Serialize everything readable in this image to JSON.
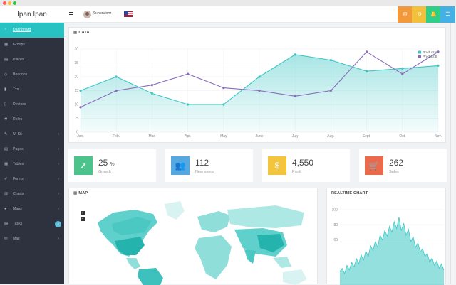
{
  "app": {
    "brand": "Ipan Ipan"
  },
  "topbar": {
    "user_label": "Supervisor",
    "buttons": [
      {
        "icon": "chat-icon",
        "glyph": "✉",
        "color": "#f29a3b"
      },
      {
        "icon": "mail-icon",
        "glyph": "✉",
        "color": "#f2c13b"
      },
      {
        "icon": "bell-icon",
        "glyph": "🔔",
        "color": "#2fcf8a"
      },
      {
        "icon": "menu-list-icon",
        "glyph": "☰",
        "color": "#45b0e4"
      }
    ]
  },
  "sidebar": {
    "items": [
      {
        "label": "Dashboard",
        "icon": "dashboard-icon",
        "glyph": "◔",
        "active": true,
        "arrow": false
      },
      {
        "label": "Groups",
        "icon": "groups-icon",
        "glyph": "▦",
        "active": false,
        "arrow": false
      },
      {
        "label": "Places",
        "icon": "places-icon",
        "glyph": "▤",
        "active": false,
        "arrow": false
      },
      {
        "label": "Beacons",
        "icon": "beacons-icon",
        "glyph": "◇",
        "active": false,
        "arrow": false
      },
      {
        "label": "Txs",
        "icon": "txs-icon",
        "glyph": "▮",
        "active": false,
        "arrow": false
      },
      {
        "label": "Devices",
        "icon": "devices-icon",
        "glyph": "▯",
        "active": false,
        "arrow": false
      },
      {
        "label": "Roles",
        "icon": "roles-icon",
        "glyph": "✱",
        "active": false,
        "arrow": false
      },
      {
        "label": "UI Kit",
        "icon": "ui-kit-icon",
        "glyph": "✎",
        "active": false,
        "arrow": true
      },
      {
        "label": "Pages",
        "icon": "pages-icon",
        "glyph": "▤",
        "active": false,
        "arrow": true
      },
      {
        "label": "Tables",
        "icon": "tables-icon",
        "glyph": "▦",
        "active": false,
        "arrow": true
      },
      {
        "label": "Forms",
        "icon": "forms-icon",
        "glyph": "✐",
        "active": false,
        "arrow": true
      },
      {
        "label": "Charts",
        "icon": "charts-icon",
        "glyph": "▥",
        "active": false,
        "arrow": true
      },
      {
        "label": "Maps",
        "icon": "maps-icon",
        "glyph": "●",
        "active": false,
        "arrow": true
      },
      {
        "label": "Tasks",
        "icon": "tasks-icon",
        "glyph": "▤",
        "active": false,
        "arrow": false,
        "badge": "4"
      },
      {
        "label": "Mail",
        "icon": "mail-icon",
        "glyph": "✉",
        "active": false,
        "arrow": true
      }
    ]
  },
  "data_panel": {
    "title": "DATA"
  },
  "map_panel": {
    "title": "MAP",
    "zoom_in": "+",
    "zoom_out": "−"
  },
  "realtime_panel": {
    "title": "REALTIME CHART"
  },
  "stats": [
    {
      "value": "25",
      "unit": "%",
      "label": "Growth",
      "icon": "rocket-icon",
      "glyph": "➚",
      "color": "#4cc38a"
    },
    {
      "value": "112",
      "unit": "",
      "label": "New users",
      "icon": "users-icon",
      "glyph": "👥",
      "color": "#55a9e0"
    },
    {
      "value": "4,550",
      "unit": "",
      "label": "Profit",
      "icon": "dollar-icon",
      "glyph": "$",
      "color": "#f2c53d"
    },
    {
      "value": "262",
      "unit": "",
      "label": "Sales",
      "icon": "cart-icon",
      "glyph": "🛒",
      "color": "#ec6a4c"
    }
  ],
  "chart_data": [
    {
      "type": "line",
      "categories": [
        "Jan.",
        "Feb.",
        "Mar.",
        "Apr.",
        "May",
        "June",
        "July",
        "Aug.",
        "Sept.",
        "Oct.",
        "Nov."
      ],
      "ylim": [
        0,
        30
      ],
      "yticks": [
        0,
        5,
        10,
        15,
        20,
        25,
        30
      ],
      "grid": true,
      "legend": "top-right",
      "series": [
        {
          "name": "Product A",
          "color": "#3cc6c4",
          "fill": true,
          "values": [
            15,
            20,
            14,
            10,
            10,
            20,
            28,
            26,
            22,
            23,
            24
          ]
        },
        {
          "name": "Product B",
          "color": "#8a6bbd",
          "fill": false,
          "values": [
            9,
            15,
            17,
            21,
            16,
            15,
            13,
            15,
            29,
            21,
            29
          ]
        }
      ]
    },
    {
      "type": "area",
      "ylim": [
        0,
        100
      ],
      "yticks": [
        60,
        80,
        100
      ],
      "color": "#3cc6c4",
      "values": [
        18,
        22,
        15,
        26,
        20,
        30,
        24,
        35,
        28,
        40,
        33,
        45,
        38,
        52,
        46,
        58,
        50,
        66,
        60,
        72,
        65,
        78,
        70,
        84,
        75,
        90,
        72,
        82,
        66,
        74,
        58,
        64,
        50,
        56,
        44,
        48,
        38,
        42,
        30,
        36,
        26,
        32,
        22,
        28,
        20
      ]
    }
  ]
}
